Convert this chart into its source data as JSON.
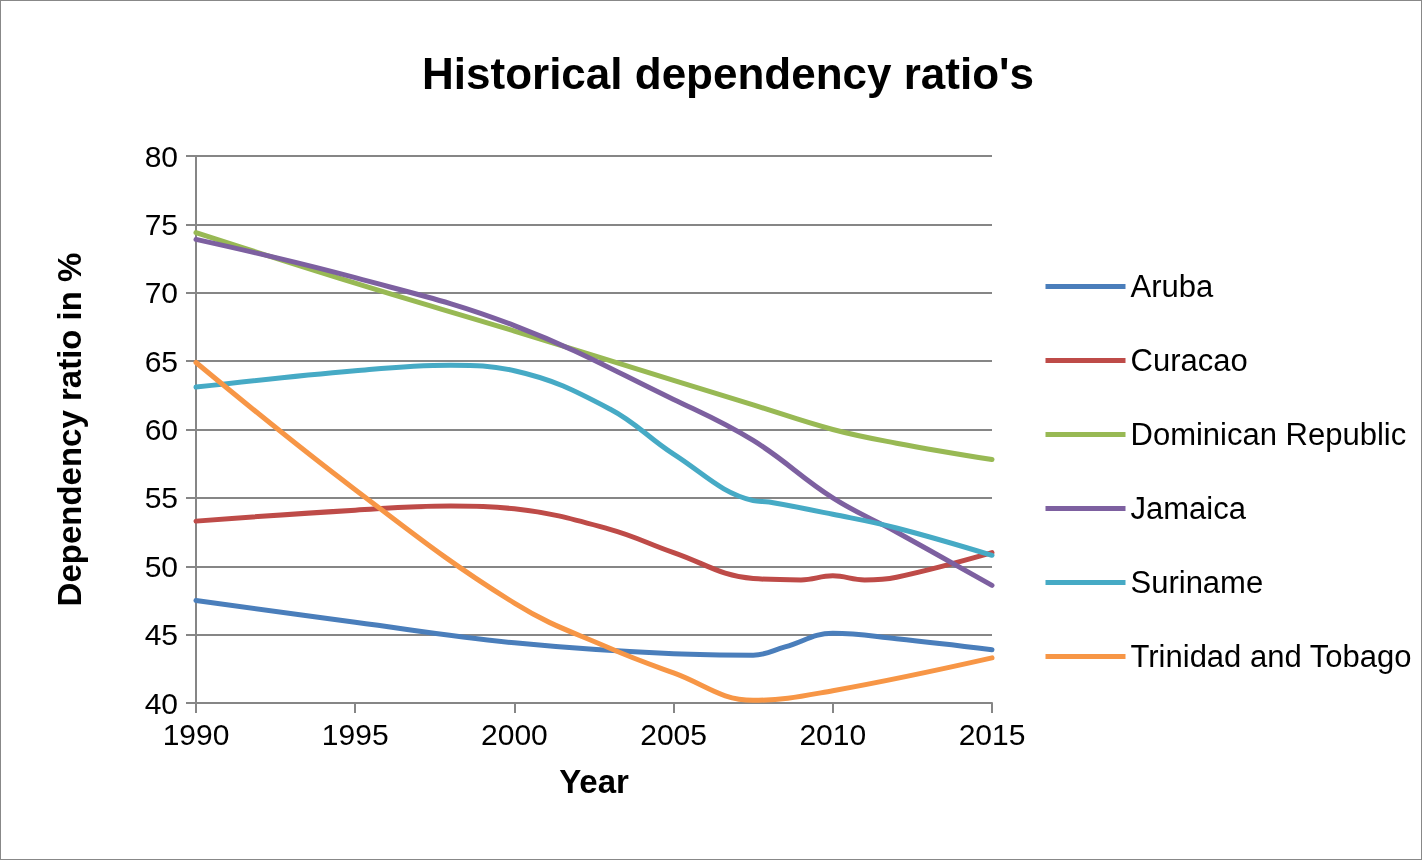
{
  "chart_data": {
    "type": "line",
    "title": "Historical dependency ratio's",
    "xlabel": "Year",
    "ylabel": "Dependency ratio in %",
    "xlim": [
      1990,
      2015
    ],
    "xticks": [
      1990,
      1995,
      2000,
      2005,
      2010,
      2015
    ],
    "ylim": [
      40,
      80
    ],
    "yticks": [
      40,
      45,
      50,
      55,
      60,
      65,
      70,
      75,
      80
    ],
    "grid": "y",
    "legend": "right",
    "marker": "none",
    "line_style": "solid",
    "series": [
      {
        "name": "Aruba",
        "color": "#4a7ebb",
        "x": [
          1990,
          1995,
          2000,
          2005,
          2007.5,
          2008.5,
          2010,
          2012,
          2015
        ],
        "values": [
          47.5,
          45.9,
          44.4,
          43.6,
          43.5,
          44.1,
          45.1,
          44.7,
          43.9
        ]
      },
      {
        "name": "Curacao",
        "color": "#be4b48",
        "x": [
          1990,
          1995,
          1998,
          2000,
          2003,
          2005,
          2007.5,
          2009,
          2010,
          2011,
          2012,
          2015
        ],
        "values": [
          53.3,
          54.1,
          54.4,
          54.2,
          52.7,
          51.0,
          49.1,
          49.0,
          49.3,
          49.0,
          49.2,
          51.0
        ]
      },
      {
        "name": "Dominican Republic",
        "color": "#98b954",
        "x": [
          1990,
          1995,
          2000,
          2005,
          2007.5,
          2010,
          2012,
          2015
        ],
        "values": [
          74.4,
          70.7,
          67.2,
          63.6,
          61.8,
          60.0,
          59.0,
          57.8
        ]
      },
      {
        "name": "Jamaica",
        "color": "#7d60a0",
        "x": [
          1990,
          1995,
          2000,
          2005,
          2007.5,
          2010,
          2012,
          2015
        ],
        "values": [
          73.9,
          71.1,
          67.6,
          62.2,
          59.2,
          55.0,
          52.5,
          48.6
        ]
      },
      {
        "name": "Suriname",
        "color": "#46aac5",
        "x": [
          1990,
          1995,
          1998,
          2000,
          2003,
          2005,
          2007.5,
          2008,
          2010,
          2012,
          2015
        ],
        "values": [
          63.1,
          64.3,
          64.7,
          64.3,
          61.5,
          58.2,
          54.8,
          54.7,
          53.8,
          52.8,
          50.8
        ]
      },
      {
        "name": "Trinidad and Tobago",
        "color": "#f79646",
        "x": [
          1990,
          1995,
          2000,
          2003,
          2005,
          2007.5,
          2010,
          2015
        ],
        "values": [
          64.9,
          55.6,
          47.3,
          44.0,
          42.2,
          40.2,
          40.9,
          43.3
        ]
      }
    ]
  }
}
